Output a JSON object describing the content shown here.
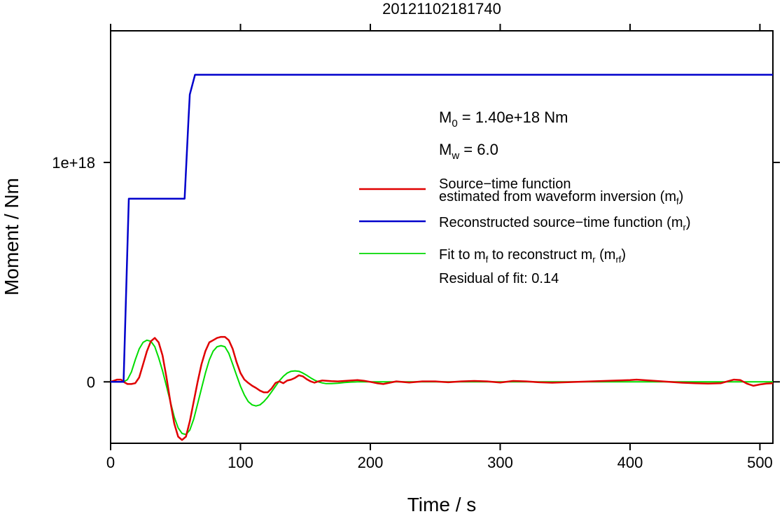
{
  "chart_data": {
    "type": "line",
    "title": "20121102181740",
    "xlabel": "Time / s",
    "ylabel": "Moment / Nm",
    "xlim": [
      0,
      510
    ],
    "ylim": [
      -2.8e+17,
      1.6e+18
    ],
    "xticks": [
      0,
      100,
      200,
      300,
      400,
      500
    ],
    "xtick_labels": [
      "0",
      "100",
      "200",
      "300",
      "400",
      "500"
    ],
    "yticks": [
      0,
      1e+18
    ],
    "ytick_labels": [
      "0",
      "1e+18"
    ],
    "grid": false,
    "legend_position": "right",
    "annotations": {
      "m0_prefix": "M",
      "m0_sub": "0",
      "m0_rest": " = 1.40e+18 Nm",
      "mw_prefix": "M",
      "mw_sub": "w",
      "mw_rest": " = 6.0"
    },
    "legend": {
      "red_line1": "Source−time function",
      "red_line2": "estimated from waveform inversion (m",
      "red_sub": "f",
      "red_close": ")",
      "blue_text": "Reconstructed source−time function (m",
      "blue_sub": "r",
      "blue_close": ")",
      "green_a": "Fit to m",
      "green_a_sub": "f",
      "green_b": " to reconstruct m",
      "green_b_sub": "r",
      "green_c": " (m",
      "green_c_sub": "rf",
      "green_close": ")",
      "residual": "Residual of fit: 0.14"
    },
    "series": [
      {
        "name": "Source-time function estimated from waveform inversion (mf)",
        "color": "#e00000",
        "x": [
          0,
          5,
          8,
          10,
          13,
          16,
          19,
          22,
          25,
          28,
          31,
          34,
          37,
          40,
          43,
          46,
          49,
          52,
          55,
          58,
          61,
          64,
          67,
          70,
          73,
          76,
          79,
          82,
          85,
          88,
          91,
          94,
          97,
          100,
          103,
          106,
          109,
          112,
          115,
          118,
          121,
          124,
          127,
          130,
          133,
          136,
          139,
          142,
          145,
          148,
          151,
          154,
          157,
          160,
          163,
          166,
          170,
          175,
          180,
          185,
          190,
          195,
          200,
          205,
          210,
          215,
          220,
          230,
          240,
          250,
          260,
          270,
          280,
          290,
          300,
          310,
          320,
          330,
          340,
          350,
          360,
          370,
          380,
          390,
          400,
          405,
          410,
          420,
          430,
          440,
          450,
          460,
          470,
          475,
          480,
          485,
          490,
          495,
          500,
          505,
          510
        ],
        "y": [
          0,
          0.01,
          0.01,
          0,
          -0.01,
          -0.01,
          -0.006,
          0.02,
          0.08,
          0.14,
          0.185,
          0.2,
          0.18,
          0.12,
          0.02,
          -0.09,
          -0.19,
          -0.25,
          -0.265,
          -0.25,
          -0.18,
          -0.09,
          0,
          0.08,
          0.14,
          0.18,
          0.19,
          0.2,
          0.205,
          0.205,
          0.19,
          0.15,
          0.09,
          0.04,
          0.01,
          -0.005,
          -0.018,
          -0.028,
          -0.04,
          -0.048,
          -0.048,
          -0.03,
          -0.005,
          0.002,
          -0.006,
          0.006,
          0.01,
          0.018,
          0.03,
          0.025,
          0.012,
          0.002,
          -0.004,
          0.002,
          0.006,
          0.005,
          0.003,
          0.002,
          0.004,
          0.006,
          0.008,
          0.005,
          0,
          -0.006,
          -0.01,
          -0.004,
          0.002,
          -0.003,
          0.002,
          0.002,
          -0.002,
          0.002,
          0.004,
          0.002,
          -0.003,
          0.004,
          0.002,
          -0.002,
          -0.004,
          -0.002,
          0,
          0.002,
          0.004,
          0.006,
          0.008,
          0.01,
          0.008,
          0.004,
          0,
          -0.004,
          -0.006,
          -0.008,
          -0.006,
          0.002,
          0.01,
          0.008,
          -0.008,
          -0.018,
          -0.012,
          -0.008,
          -0.006
        ]
      },
      {
        "name": "Reconstructed source-time function (mr)",
        "color": "#0000cc",
        "x": [
          0,
          10,
          14,
          57,
          60,
          61,
          65,
          510
        ],
        "y": [
          0,
          0,
          0.835,
          0.835,
          1.2,
          1.31,
          1.4,
          1.4
        ]
      },
      {
        "name": "Fit to mf to reconstruct mr (mrf)",
        "color": "#00dd00",
        "x": [
          0,
          8,
          10,
          13,
          16,
          19,
          22,
          25,
          28,
          31,
          34,
          37,
          40,
          43,
          46,
          49,
          52,
          55,
          58,
          61,
          64,
          67,
          70,
          73,
          76,
          79,
          82,
          85,
          88,
          91,
          94,
          97,
          100,
          103,
          106,
          109,
          112,
          115,
          118,
          121,
          124,
          127,
          130,
          133,
          136,
          139,
          142,
          145,
          148,
          151,
          154,
          157,
          160,
          163,
          166,
          170,
          175,
          180,
          185,
          190,
          200,
          250,
          300,
          350,
          400,
          450,
          510
        ],
        "y": [
          0,
          0,
          0,
          0.01,
          0.045,
          0.1,
          0.15,
          0.18,
          0.19,
          0.185,
          0.16,
          0.11,
          0.05,
          -0.02,
          -0.09,
          -0.16,
          -0.21,
          -0.235,
          -0.24,
          -0.22,
          -0.17,
          -0.1,
          -0.03,
          0.04,
          0.1,
          0.14,
          0.16,
          0.165,
          0.16,
          0.13,
          0.08,
          0.03,
          -0.02,
          -0.06,
          -0.09,
          -0.105,
          -0.11,
          -0.105,
          -0.09,
          -0.07,
          -0.045,
          -0.02,
          0.005,
          0.025,
          0.04,
          0.048,
          0.05,
          0.048,
          0.04,
          0.03,
          0.018,
          0.008,
          0,
          -0.005,
          -0.008,
          -0.008,
          -0.006,
          -0.003,
          -0.001,
          0,
          0,
          0,
          0,
          0,
          0,
          0,
          0
        ]
      }
    ],
    "y_series_scale": 1e+18
  }
}
